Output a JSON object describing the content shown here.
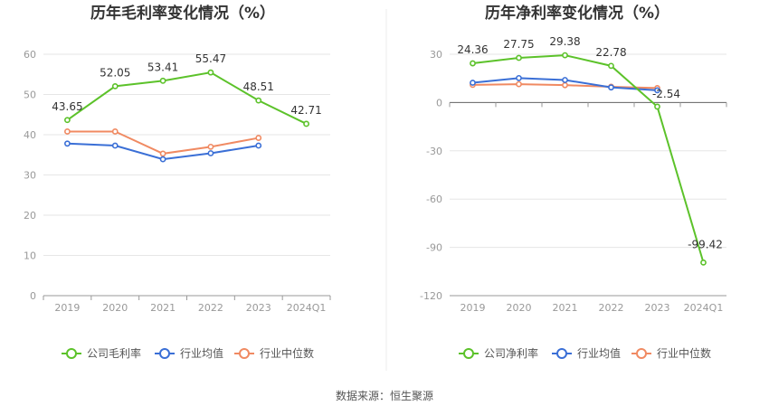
{
  "source": "数据来源：恒生聚源",
  "colors": {
    "company": "#5cc22a",
    "industry_avg": "#3a6fd6",
    "industry_median": "#f08a62"
  },
  "chart_data": [
    {
      "type": "line",
      "title": "历年毛利率变化情况（%）",
      "categories": [
        "2019",
        "2020",
        "2021",
        "2022",
        "2023",
        "2024Q1"
      ],
      "ylim": [
        0,
        60
      ],
      "yticks": [
        0,
        10,
        20,
        30,
        40,
        50,
        60
      ],
      "grid": true,
      "legend": "bottom",
      "series": [
        {
          "name": "公司毛利率",
          "key": "company",
          "values": [
            43.65,
            52.05,
            53.41,
            55.47,
            48.51,
            42.71
          ],
          "labels": [
            "43.65",
            "52.05",
            "53.41",
            "55.47",
            "48.51",
            "42.71"
          ]
        },
        {
          "name": "行业均值",
          "key": "industry_avg",
          "values": [
            37.8,
            37.3,
            33.9,
            35.4,
            37.3,
            null
          ]
        },
        {
          "name": "行业中位数",
          "key": "industry_median",
          "values": [
            40.8,
            40.8,
            35.3,
            37.0,
            39.2,
            null
          ]
        }
      ]
    },
    {
      "type": "line",
      "title": "历年净利率变化情况（%）",
      "categories": [
        "2019",
        "2020",
        "2021",
        "2022",
        "2023",
        "2024Q1"
      ],
      "ylim": [
        -120,
        30
      ],
      "yticks": [
        -120,
        -90,
        -60,
        -30,
        0,
        30
      ],
      "grid": true,
      "legend": "bottom",
      "series": [
        {
          "name": "公司净利率",
          "key": "company",
          "values": [
            24.36,
            27.75,
            29.38,
            22.78,
            -2.54,
            -99.42
          ],
          "labels": [
            "24.36",
            "27.75",
            "29.38",
            "22.78",
            "-2.54",
            "-99.42"
          ]
        },
        {
          "name": "行业均值",
          "key": "industry_avg",
          "values": [
            12.3,
            15.2,
            14.0,
            9.4,
            7.6,
            null
          ]
        },
        {
          "name": "行业中位数",
          "key": "industry_median",
          "values": [
            11.0,
            11.4,
            10.8,
            9.8,
            9.0,
            null
          ]
        }
      ]
    }
  ]
}
